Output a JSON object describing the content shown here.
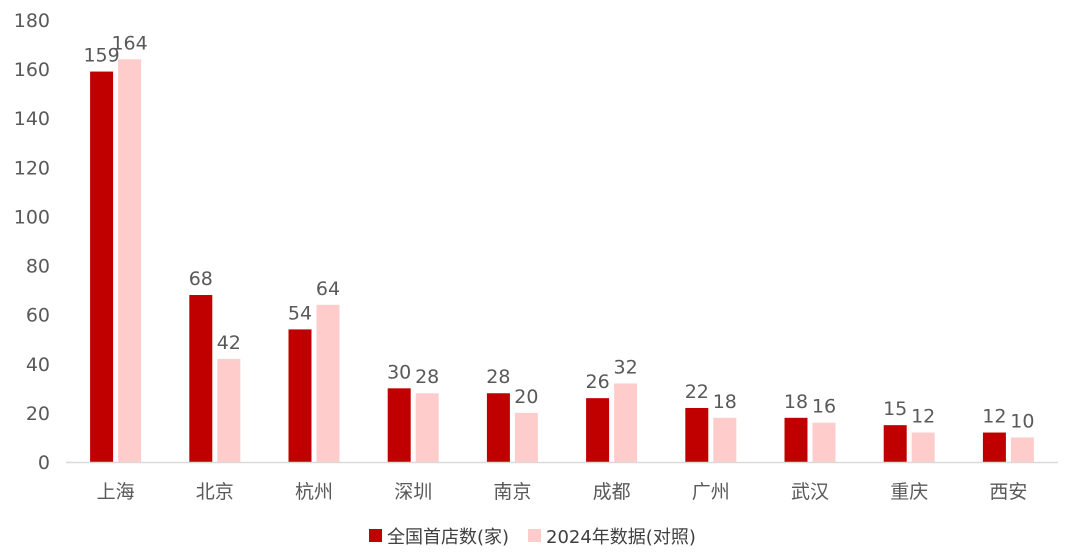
{
  "chart_data": {
    "type": "bar",
    "title": "",
    "xlabel": "",
    "ylabel": "",
    "ylim": [
      0,
      180
    ],
    "yticks": [
      "0",
      "20",
      "40",
      "60",
      "80",
      "100",
      "120",
      "140",
      "160",
      "180"
    ],
    "grid": false,
    "legend_position": "bottom",
    "categories": [
      "上海",
      "北京",
      "杭州",
      "深圳",
      "南京",
      "成都",
      "广州",
      "武汉",
      "重庆",
      "西安"
    ],
    "series": [
      {
        "name": "全国首店数(家)",
        "color": "#c00000",
        "values": [
          159,
          68,
          54,
          30,
          28,
          26,
          22,
          18,
          15,
          12
        ]
      },
      {
        "name": "2024年数据(对照)",
        "color": "#ffcccc",
        "values": [
          164,
          42,
          64,
          28,
          20,
          32,
          18,
          16,
          12,
          10
        ]
      }
    ],
    "data_labels": true
  }
}
